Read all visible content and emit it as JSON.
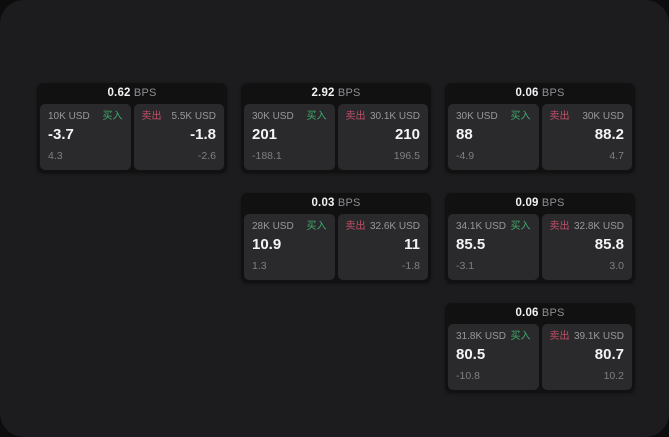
{
  "page": {
    "background": "#0d0d0d",
    "surface": "#1c1c1e",
    "card_background": "#111112",
    "panel_background": "#2a2a2c"
  },
  "colors": {
    "buy_green": "#40ab6d",
    "sell_red": "#c14e68",
    "value_white": "#f4f4f5",
    "label_gray": "#98989c"
  },
  "labels": {
    "bps_suffix": "BPS",
    "buy": "买入",
    "sell": "卖出"
  },
  "cards": [
    {
      "bps": "0.62",
      "buy": {
        "amount": "10K USD",
        "value": "-3.7",
        "delta": "4.3"
      },
      "sell": {
        "amount": "5.5K USD",
        "value": "-1.8",
        "delta": "-2.6"
      },
      "row": 1,
      "col": 1
    },
    {
      "bps": "2.92",
      "buy": {
        "amount": "30K USD",
        "value": "201",
        "delta": "-188.1"
      },
      "sell": {
        "amount": "30.1K USD",
        "value": "210",
        "delta": "196.5"
      },
      "row": 1,
      "col": 2
    },
    {
      "bps": "0.06",
      "buy": {
        "amount": "30K USD",
        "value": "88",
        "delta": "-4.9"
      },
      "sell": {
        "amount": "30K USD",
        "value": "88.2",
        "delta": "4.7"
      },
      "row": 1,
      "col": 3
    },
    {
      "bps": "0.03",
      "buy": {
        "amount": "28K USD",
        "value": "10.9",
        "delta": "1.3"
      },
      "sell": {
        "amount": "32.6K USD",
        "value": "11",
        "delta": "-1.8"
      },
      "row": 2,
      "col": 2
    },
    {
      "bps": "0.09",
      "buy": {
        "amount": "34.1K USD",
        "value": "85.5",
        "delta": "-3.1"
      },
      "sell": {
        "amount": "32.8K USD",
        "value": "85.8",
        "delta": "3.0"
      },
      "row": 2,
      "col": 3
    },
    {
      "bps": "0.06",
      "buy": {
        "amount": "31.8K USD",
        "value": "80.5",
        "delta": "-10.8"
      },
      "sell": {
        "amount": "39.1K USD",
        "value": "80.7",
        "delta": "10.2"
      },
      "row": 3,
      "col": 3
    }
  ]
}
